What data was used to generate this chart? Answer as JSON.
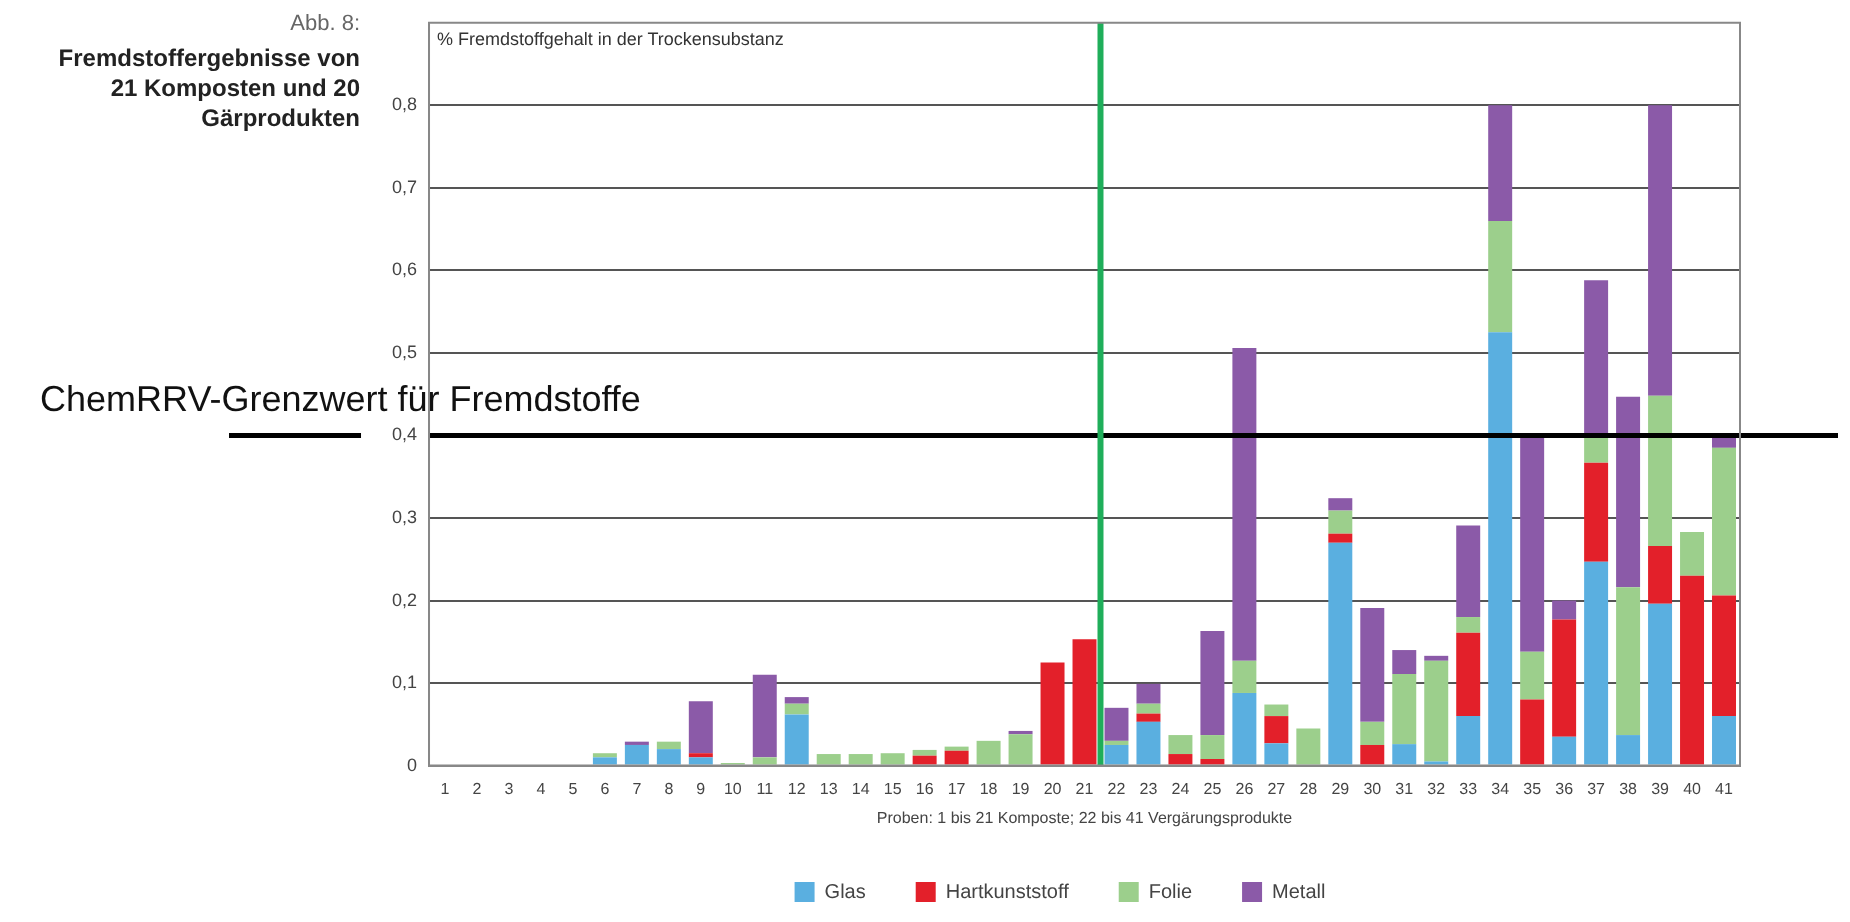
{
  "chart_data": {
    "type": "bar",
    "stacked": true,
    "title": "Abb. 8:",
    "subtitle": "Fremdstoffergebnisse von 21 Komposten und 20 Gärprodukten",
    "ylabel": "% Fremdstoffgehalt in der Trockensubstanz",
    "xlabel": "Proben: 1 bis 21 Komposte; 22 bis 41 Vergärungsprodukte",
    "x": [
      1,
      2,
      3,
      4,
      5,
      6,
      7,
      8,
      9,
      10,
      11,
      12,
      13,
      14,
      15,
      16,
      17,
      18,
      19,
      20,
      21,
      22,
      23,
      24,
      25,
      26,
      27,
      28,
      29,
      30,
      31,
      32,
      33,
      34,
      35,
      36,
      37,
      38,
      39,
      40,
      41
    ],
    "xlim": [
      0.5,
      41.5
    ],
    "xticks": [
      1,
      2,
      3,
      4,
      5,
      6,
      7,
      8,
      9,
      10,
      11,
      12,
      13,
      14,
      15,
      16,
      17,
      18,
      19,
      20,
      21,
      22,
      23,
      24,
      25,
      26,
      27,
      28,
      29,
      30,
      31,
      32,
      33,
      34,
      35,
      36,
      37,
      38,
      39,
      40,
      41
    ],
    "ylim": [
      0,
      0.9
    ],
    "yticks": [
      {
        "value": 0,
        "label": "0"
      },
      {
        "value": 0.1,
        "label": "0,1"
      },
      {
        "value": 0.2,
        "label": "0,2"
      },
      {
        "value": 0.3,
        "label": "0,3"
      },
      {
        "value": 0.4,
        "label": "0,4"
      },
      {
        "value": 0.5,
        "label": "0,5"
      },
      {
        "value": 0.6,
        "label": "0,6"
      },
      {
        "value": 0.7,
        "label": "0,7"
      },
      {
        "value": 0.8,
        "label": "0,8"
      }
    ],
    "grid": "y",
    "legend": "bottom",
    "series": [
      {
        "name": "Glas",
        "color": "#5aafe0",
        "values": [
          0,
          0,
          0,
          0,
          0,
          0.01,
          0.025,
          0.02,
          0.01,
          0,
          0,
          0.062,
          0,
          0,
          0,
          0,
          0,
          0,
          0,
          0,
          0,
          0.025,
          0.053,
          0,
          0,
          0.088,
          0.027,
          0,
          0.27,
          0,
          0.026,
          0.005,
          0.06,
          0.525,
          0,
          0.035,
          0.247,
          0.037,
          0.196,
          0,
          0.06
        ]
      },
      {
        "name": "Hartkunststoff",
        "color": "#e3202a",
        "values": [
          0,
          0,
          0,
          0,
          0,
          0,
          0,
          0,
          0.005,
          0,
          0,
          0,
          0,
          0,
          0,
          0.012,
          0.018,
          0,
          0,
          0.125,
          0.153,
          0,
          0.01,
          0.014,
          0.008,
          0,
          0.033,
          0,
          0.011,
          0.025,
          0,
          0,
          0.101,
          0,
          0.08,
          0.142,
          0.12,
          0,
          0.07,
          0.23,
          0.146
        ]
      },
      {
        "name": "Folie",
        "color": "#9ccf8c",
        "values": [
          0,
          0,
          0,
          0,
          0,
          0.005,
          0,
          0.009,
          0,
          0.003,
          0.01,
          0.013,
          0.014,
          0.014,
          0.015,
          0.007,
          0.005,
          0.03,
          0.038,
          0,
          0,
          0.005,
          0.012,
          0.023,
          0.029,
          0.039,
          0.014,
          0.045,
          0.028,
          0.028,
          0.085,
          0.122,
          0.019,
          0.135,
          0.058,
          0,
          0.033,
          0.179,
          0.182,
          0.053,
          0.179
        ]
      },
      {
        "name": "Metall",
        "color": "#8b5aa8",
        "values": [
          0,
          0,
          0,
          0,
          0,
          0,
          0.004,
          0,
          0.063,
          0,
          0.1,
          0.008,
          0,
          0,
          0,
          0,
          0,
          0,
          0.004,
          0,
          0,
          0.04,
          0.024,
          0,
          0.126,
          0.379,
          0,
          0,
          0.015,
          0.138,
          0.029,
          0.006,
          0.111,
          0.14,
          0.262,
          0.023,
          0.188,
          0.231,
          0.352,
          0,
          0.013
        ]
      }
    ],
    "ref_lines": [
      {
        "axis": "y",
        "value": 0.4,
        "label": "ChemRRV-Grenzwert für Fremdstoffe",
        "color": "#000000"
      },
      {
        "axis": "x",
        "value": 21.5,
        "label": null,
        "color": "#1fae5a"
      }
    ]
  }
}
